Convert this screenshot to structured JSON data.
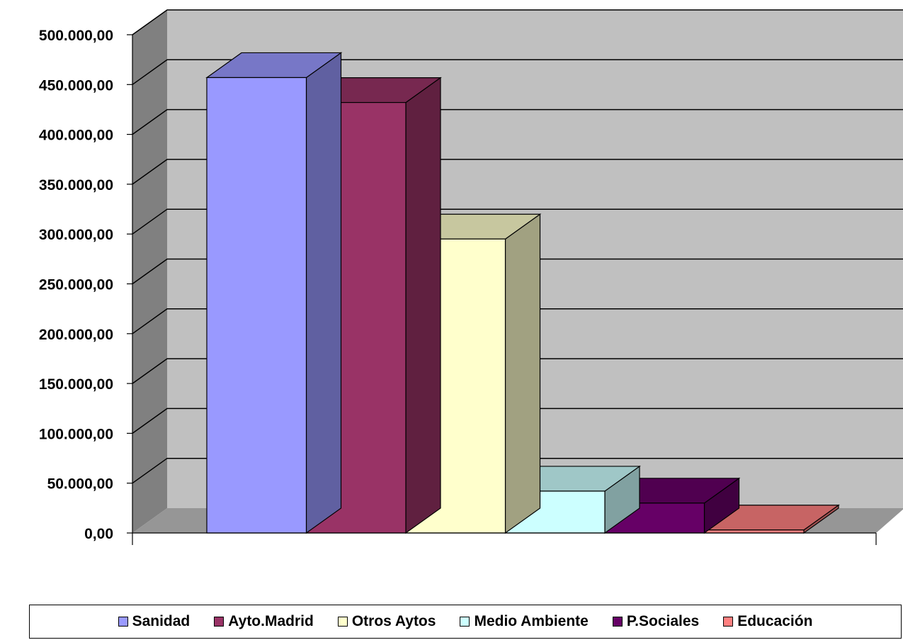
{
  "chart_data": {
    "type": "bar",
    "title": "",
    "xlabel": "",
    "ylabel": "",
    "ylim": [
      0,
      500000
    ],
    "y_ticks": [
      {
        "value": 0,
        "label": "0,00"
      },
      {
        "value": 50000,
        "label": "50.000,00"
      },
      {
        "value": 100000,
        "label": "100.000,00"
      },
      {
        "value": 150000,
        "label": "150.000,00"
      },
      {
        "value": 200000,
        "label": "200.000,00"
      },
      {
        "value": 250000,
        "label": "250.000,00"
      },
      {
        "value": 300000,
        "label": "300.000,00"
      },
      {
        "value": 350000,
        "label": "350.000,00"
      },
      {
        "value": 400000,
        "label": "400.000,00"
      },
      {
        "value": 450000,
        "label": "450.000,00"
      },
      {
        "value": 500000,
        "label": "500.000,00"
      }
    ],
    "grid": true,
    "three_d": true,
    "legend_position": "bottom",
    "series": [
      {
        "name": "Sanidad",
        "value": 457000,
        "color": "#9999FF"
      },
      {
        "name": "Ayto.Madrid",
        "value": 432000,
        "color": "#993366"
      },
      {
        "name": "Otros Aytos",
        "value": 295000,
        "color": "#FFFFCC"
      },
      {
        "name": "Medio Ambiente",
        "value": 42000,
        "color": "#CCFFFF"
      },
      {
        "name": "P.Sociales",
        "value": 30000,
        "color": "#660066"
      },
      {
        "name": "Educación",
        "value": 3000,
        "color": "#FF8080"
      }
    ],
    "colors": {
      "wall": "#C0C0C0",
      "side_wall": "#808080",
      "floor": "#969696",
      "gridline": "#000000"
    }
  }
}
